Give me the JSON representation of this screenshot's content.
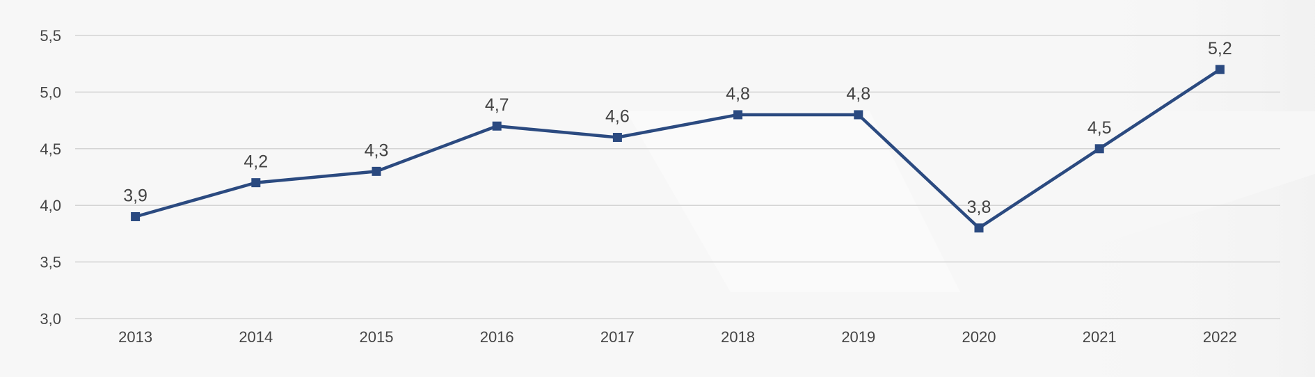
{
  "chart_data": {
    "type": "line",
    "title": "",
    "xlabel": "",
    "ylabel": "",
    "categories": [
      "2013",
      "2014",
      "2015",
      "2016",
      "2017",
      "2018",
      "2019",
      "2020",
      "2021",
      "2022"
    ],
    "series": [
      {
        "values": [
          3.9,
          4.2,
          4.3,
          4.7,
          4.6,
          4.8,
          4.8,
          3.8,
          4.5,
          5.2
        ],
        "labels": [
          "3,9",
          "4,2",
          "4,3",
          "4,7",
          "4,6",
          "4,8",
          "4,8",
          "3,8",
          "4,5",
          "5,2"
        ],
        "color": "#2b4a80",
        "marker": "square"
      }
    ],
    "ylim": [
      3.0,
      5.5
    ],
    "yticks": [
      3.0,
      3.5,
      4.0,
      4.5,
      5.0,
      5.5
    ],
    "ytick_labels": [
      "3,0",
      "3,5",
      "4,0",
      "4,5",
      "5,0",
      "5,5"
    ],
    "grid": true,
    "legend": "none"
  },
  "colors": {
    "background": "#f7f7f7",
    "gridline": "#d4d4d4",
    "text": "#444444",
    "series": "#2b4a80"
  }
}
